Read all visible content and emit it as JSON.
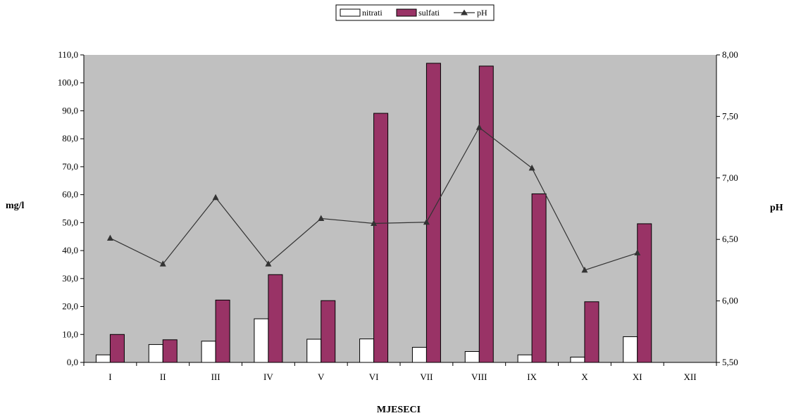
{
  "chart_data": {
    "type": "bar",
    "title": "",
    "xlabel": "MJESECI",
    "ylabel": "mg/l",
    "y2label": "pH",
    "categories": [
      "I",
      "II",
      "III",
      "IV",
      "V",
      "VI",
      "VII",
      "VIII",
      "IX",
      "X",
      "XI",
      "XII"
    ],
    "series": [
      {
        "name": "nitrati",
        "type": "bar",
        "axis": "left",
        "color": "#ffffff",
        "values": [
          2.7,
          6.4,
          7.6,
          15.6,
          8.3,
          8.4,
          5.4,
          3.9,
          2.7,
          1.9,
          9.2,
          null
        ]
      },
      {
        "name": "sulfati",
        "type": "bar",
        "axis": "left",
        "color": "#993366",
        "values": [
          10.0,
          8.1,
          22.3,
          31.4,
          22.1,
          89.1,
          107.0,
          106.0,
          60.3,
          21.7,
          49.6,
          null
        ]
      },
      {
        "name": "pH",
        "type": "line",
        "axis": "right",
        "color": "#333333",
        "marker": "triangle",
        "values": [
          6.51,
          6.3,
          6.84,
          6.3,
          6.67,
          6.63,
          6.64,
          7.41,
          7.08,
          6.25,
          6.39,
          null
        ]
      }
    ],
    "ylim": [
      0,
      110
    ],
    "y2lim": [
      5.5,
      8.0
    ],
    "yticks": [
      "0,0",
      "10,0",
      "20,0",
      "30,0",
      "40,0",
      "50,0",
      "60,0",
      "70,0",
      "80,0",
      "90,0",
      "100,0",
      "110,0"
    ],
    "y2ticks": [
      "5,50",
      "6,00",
      "6,50",
      "7,00",
      "7,50",
      "8,00"
    ],
    "plot_background": "#c0c0c0",
    "grid": false,
    "legend_position": "top-center"
  }
}
